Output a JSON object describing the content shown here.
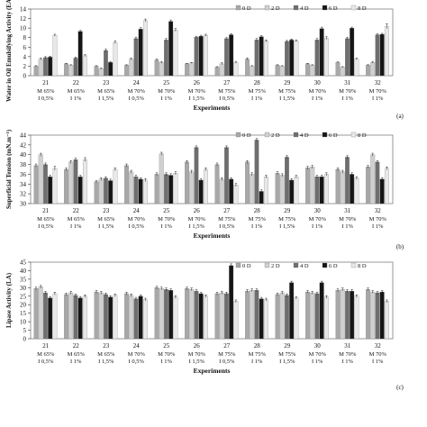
{
  "series_styles": [
    {
      "color": "#a8a8a8"
    },
    {
      "color": "#d0d0d0"
    },
    {
      "color": "#6e6e6e"
    },
    {
      "color": "#151515"
    },
    {
      "color": "#e8e8e8"
    }
  ],
  "chart_data": [
    {
      "type": "bar",
      "panel_label": "(a)",
      "ylabel": "Water in Oil Emulsifying Activity (EA W/O)",
      "xlabel": "Experiments",
      "ylim": [
        0,
        14
      ],
      "yticks": [
        0,
        2,
        4,
        6,
        8,
        10,
        12,
        14
      ],
      "legend_position": "top-right",
      "categories": [
        "21",
        "22",
        "23",
        "24",
        "25",
        "26",
        "27",
        "28",
        "29",
        "30",
        "31",
        "32"
      ],
      "category_sublabels": [
        [
          "M 65%",
          "I 0,5%"
        ],
        [
          "M 65%",
          "I 1%"
        ],
        [
          "M 65%",
          "I 1,5%"
        ],
        [
          "M 70%",
          "I 0,5%"
        ],
        [
          "M 70%",
          "I 1%"
        ],
        [
          "M 70%",
          "I 1,5%"
        ],
        [
          "M 75%",
          "I 0,5%"
        ],
        [
          "M 75%",
          "I 1%"
        ],
        [
          "M 75%",
          "I 1,5%"
        ],
        [
          "M 70%",
          "I 1%"
        ],
        [
          "M 70%",
          "I 1%"
        ],
        [
          "M 70%",
          "I 1%"
        ]
      ],
      "series": [
        {
          "name": "0 D",
          "values": [
            2.0,
            2.5,
            2.0,
            2.2,
            3.3,
            2.5,
            1.8,
            3.5,
            2.2,
            2.5,
            2.8,
            2.2
          ]
        },
        {
          "name": "2 D",
          "values": [
            3.5,
            2.2,
            1.5,
            3.5,
            2.8,
            2.7,
            2.5,
            2.0,
            2.0,
            2.2,
            1.8,
            2.8
          ]
        },
        {
          "name": "4 D",
          "values": [
            3.8,
            3.7,
            5.3,
            7.8,
            7.5,
            8.1,
            7.8,
            7.5,
            7.2,
            7.5,
            7.8,
            8.6
          ]
        },
        {
          "name": "6 D",
          "values": [
            3.9,
            9.3,
            2.8,
            9.8,
            11.4,
            8.3,
            8.6,
            8.2,
            7.5,
            9.9,
            10.0,
            8.7
          ]
        },
        {
          "name": "8 D",
          "values": [
            8.5,
            4.2,
            7.0,
            11.6,
            9.6,
            8.5,
            2.8,
            7.3,
            7.3,
            7.9,
            3.5,
            10.4
          ]
        }
      ],
      "errors": [
        [
          0.1,
          0.1,
          0.1,
          0.1,
          0.2,
          0.1,
          0.1,
          0.2,
          0.1,
          0.1,
          0.1,
          0.1
        ],
        [
          0.2,
          0.1,
          0.1,
          0.2,
          0.2,
          0.1,
          0.2,
          0.1,
          0.1,
          0.1,
          0.1,
          0.2
        ],
        [
          0.2,
          0.2,
          0.3,
          0.3,
          0.3,
          0.2,
          0.2,
          0.3,
          0.2,
          0.3,
          0.3,
          0.2
        ],
        [
          0.2,
          0.2,
          0.2,
          0.3,
          0.3,
          0.2,
          0.2,
          0.2,
          0.2,
          0.3,
          0.2,
          0.2
        ],
        [
          0.2,
          0.2,
          0.3,
          0.3,
          0.3,
          0.2,
          0.2,
          0.2,
          0.2,
          0.3,
          0.2,
          0.5
        ]
      ]
    },
    {
      "type": "bar",
      "panel_label": "(b)",
      "ylabel": "Superficial Tension (mN.m⁻¹)",
      "xlabel": "Experiments",
      "ylim": [
        30,
        44
      ],
      "yticks": [
        30,
        32,
        34,
        36,
        38,
        40,
        42,
        44
      ],
      "legend_position": "top-right",
      "categories": [
        "21",
        "22",
        "23",
        "24",
        "25",
        "26",
        "27",
        "28",
        "29",
        "30",
        "31",
        "32"
      ],
      "category_sublabels": [
        [
          "M 65%",
          "I 0,5%"
        ],
        [
          "M 65%",
          "I 1%"
        ],
        [
          "M 65%",
          "I 1,5%"
        ],
        [
          "M 70%",
          "I 0,5%"
        ],
        [
          "M 70%",
          "I 1%"
        ],
        [
          "M 70%",
          "I 1,5%"
        ],
        [
          "M 75%",
          "I 0,5%"
        ],
        [
          "M 75%",
          "I 1%"
        ],
        [
          "M 75%",
          "I 1,5%"
        ],
        [
          "M 70%",
          "I 1%"
        ],
        [
          "M 70%",
          "I 1%"
        ],
        [
          "M 70%",
          "I 1%"
        ]
      ],
      "series": [
        {
          "name": "0 D",
          "values": [
            37.8,
            37.0,
            34.5,
            37.8,
            36.0,
            38.5,
            38.0,
            38.5,
            36.2,
            37.3,
            37.0,
            37.5
          ]
        },
        {
          "name": "2 D",
          "values": [
            40.0,
            38.5,
            35.0,
            36.5,
            40.2,
            36.5,
            35.0,
            36.0,
            35.8,
            37.5,
            36.5,
            40.0
          ]
        },
        {
          "name": "4 D",
          "values": [
            38.0,
            39.0,
            35.2,
            35.5,
            36.0,
            41.5,
            41.5,
            43.0,
            39.5,
            35.5,
            39.5,
            38.5
          ]
        },
        {
          "name": "6 D",
          "values": [
            35.5,
            35.5,
            34.7,
            35.0,
            35.8,
            34.8,
            35.0,
            32.5,
            34.8,
            35.5,
            36.0,
            35.0
          ]
        },
        {
          "name": "8 D",
          "values": [
            37.2,
            39.0,
            37.0,
            34.8,
            36.2,
            37.0,
            33.8,
            35.5,
            35.5,
            36.0,
            35.2,
            37.2
          ]
        }
      ],
      "errors": [
        [
          0.3,
          0.3,
          0.2,
          0.3,
          0.3,
          0.3,
          0.3,
          0.3,
          0.3,
          0.3,
          0.3,
          0.3
        ],
        [
          0.3,
          0.3,
          0.3,
          0.3,
          0.3,
          0.3,
          0.3,
          0.3,
          0.3,
          0.3,
          0.3,
          0.3
        ],
        [
          0.3,
          0.3,
          0.3,
          0.3,
          0.3,
          0.3,
          0.3,
          0.3,
          0.3,
          0.3,
          0.3,
          0.3
        ],
        [
          0.3,
          0.3,
          0.3,
          0.3,
          0.3,
          0.3,
          0.3,
          0.3,
          0.3,
          0.3,
          0.3,
          0.3
        ],
        [
          0.4,
          0.4,
          0.3,
          0.3,
          0.3,
          0.3,
          0.3,
          0.3,
          0.3,
          0.3,
          0.3,
          0.3
        ]
      ]
    },
    {
      "type": "bar",
      "panel_label": "(c)",
      "ylabel": "Lipase Activity (LA)",
      "xlabel": "Experiments",
      "ylim": [
        0,
        45
      ],
      "yticks": [
        0,
        5,
        10,
        15,
        20,
        25,
        30,
        35,
        40,
        45
      ],
      "legend_position": "top-right",
      "categories": [
        "21",
        "22",
        "23",
        "24",
        "25",
        "26",
        "27",
        "28",
        "29",
        "30",
        "31",
        "32"
      ],
      "category_sublabels": [
        [
          "M 65%",
          "I 0,5%"
        ],
        [
          "M 65%",
          "I 1%"
        ],
        [
          "M 65%",
          "I 1,5%"
        ],
        [
          "M 70%",
          "I 0,5%"
        ],
        [
          "M 70%",
          "I 1%"
        ],
        [
          "M 70%",
          "I 1,5%"
        ],
        [
          "M 75%",
          "I 0,5%"
        ],
        [
          "M 75%",
          "I 1%"
        ],
        [
          "M 75%",
          "I 1,5%"
        ],
        [
          "M 70%",
          "I 1%"
        ],
        [
          "M 70%",
          "I 1%"
        ],
        [
          "M 70%",
          "I 1%"
        ]
      ],
      "series": [
        {
          "name": "0 D",
          "values": [
            29.5,
            26.0,
            27.5,
            26.5,
            30.0,
            29.5,
            26.5,
            28.0,
            26.0,
            27.5,
            28.5,
            29.0
          ]
        },
        {
          "name": "2 D",
          "values": [
            30.5,
            27.0,
            27.0,
            25.5,
            29.5,
            29.0,
            27.0,
            28.5,
            27.0,
            27.0,
            29.0,
            27.5
          ]
        },
        {
          "name": "4 D",
          "values": [
            27.0,
            25.5,
            26.0,
            23.5,
            29.0,
            28.0,
            26.5,
            28.5,
            25.5,
            26.5,
            28.0,
            27.0
          ]
        },
        {
          "name": "6 D",
          "values": [
            24.0,
            24.0,
            24.5,
            25.0,
            28.5,
            26.5,
            43.0,
            23.5,
            33.0,
            33.0,
            28.0,
            27.5
          ]
        },
        {
          "name": "8 D",
          "values": [
            26.5,
            25.0,
            25.5,
            23.0,
            24.5,
            25.0,
            22.0,
            23.0,
            24.0,
            24.5,
            25.0,
            22.0
          ]
        }
      ],
      "errors": [
        [
          0.8,
          0.8,
          0.8,
          0.8,
          0.8,
          0.8,
          0.8,
          0.8,
          0.8,
          0.8,
          0.8,
          0.8
        ],
        [
          0.8,
          0.8,
          0.8,
          0.8,
          0.8,
          0.8,
          0.8,
          0.8,
          0.8,
          0.8,
          0.8,
          0.8
        ],
        [
          0.8,
          0.8,
          0.8,
          0.8,
          0.8,
          0.8,
          0.8,
          0.8,
          0.8,
          0.8,
          0.8,
          0.8
        ],
        [
          0.8,
          0.8,
          0.8,
          0.8,
          0.8,
          0.8,
          1.0,
          0.8,
          0.8,
          0.8,
          0.8,
          0.8
        ],
        [
          0.8,
          0.8,
          0.8,
          0.8,
          0.8,
          0.8,
          0.8,
          0.8,
          0.8,
          0.8,
          0.8,
          0.8
        ]
      ]
    }
  ]
}
